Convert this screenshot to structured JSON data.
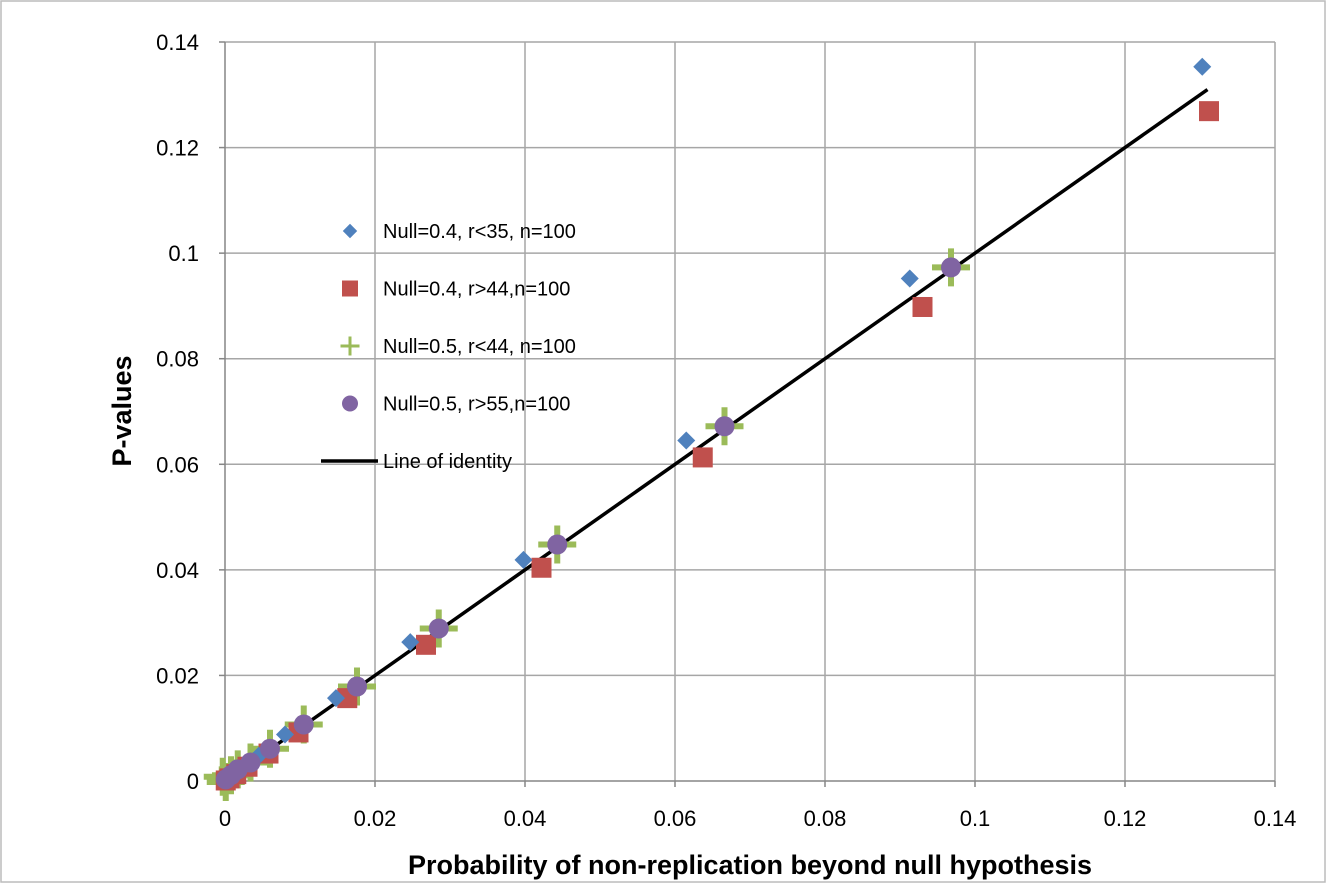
{
  "chart_data": {
    "type": "scatter",
    "xlabel": "Probability of non-replication beyond null hypothesis",
    "ylabel": "P-values",
    "xlim": [
      0,
      0.14
    ],
    "ylim": [
      0,
      0.14
    ],
    "x_ticks": [
      "0",
      "0.02",
      "0.04",
      "0.06",
      "0.08",
      "0.1",
      "0.12",
      "0.14"
    ],
    "y_ticks": [
      "0",
      "0.02",
      "0.04",
      "0.06",
      "0.08",
      "0.1",
      "0.12",
      "0.14"
    ],
    "grid": true,
    "legend_position": "left, inside plot area",
    "series": [
      {
        "name": "Null=0.4, r<35, n=100",
        "marker": "diamond",
        "color": "#4f81bd",
        "points": [
          [
            0.0001,
            0.0001
          ],
          [
            0.0005,
            0.0006
          ],
          [
            0.0012,
            0.0013
          ],
          [
            0.0025,
            0.0027
          ],
          [
            0.0045,
            0.0048
          ],
          [
            0.008,
            0.0088
          ],
          [
            0.0148,
            0.0157
          ],
          [
            0.0247,
            0.0263
          ],
          [
            0.0398,
            0.0419
          ],
          [
            0.0615,
            0.0645
          ],
          [
            0.0913,
            0.0952
          ],
          [
            0.1303,
            0.1353
          ]
        ]
      },
      {
        "name": "Null=0.4, r>44,n=100",
        "marker": "square",
        "color": "#c0504d",
        "points": [
          [
            0.0001,
            0.0001
          ],
          [
            0.0006,
            0.0005
          ],
          [
            0.0015,
            0.0013
          ],
          [
            0.003,
            0.0027
          ],
          [
            0.0058,
            0.0052
          ],
          [
            0.0098,
            0.0092
          ],
          [
            0.0163,
            0.0157
          ],
          [
            0.0268,
            0.0258
          ],
          [
            0.0422,
            0.0404
          ],
          [
            0.0637,
            0.0613
          ],
          [
            0.093,
            0.0898
          ],
          [
            0.1312,
            0.1269
          ]
        ]
      },
      {
        "name": "Null=0.5, r<44, n=100",
        "marker": "plus",
        "color": "#9bbb59",
        "points": [
          [
            -0.0003,
            0.0008
          ],
          [
            0.0001,
            -0.0002
          ],
          [
            0.0008,
            0.0011
          ],
          [
            0.0017,
            0.0022
          ],
          [
            0.0034,
            0.0035
          ],
          [
            0.006,
            0.0061
          ],
          [
            0.0105,
            0.0107
          ],
          [
            0.0176,
            0.0179
          ],
          [
            0.0285,
            0.0289
          ],
          [
            0.0443,
            0.0448
          ],
          [
            0.0666,
            0.0672
          ],
          [
            0.0968,
            0.0973
          ]
        ]
      },
      {
        "name": "Null=0.5, r>55,n=100",
        "marker": "circle",
        "color": "#8064a2",
        "points": [
          [
            0.0001,
            0.0003
          ],
          [
            0.0008,
            0.0011
          ],
          [
            0.0017,
            0.0022
          ],
          [
            0.0034,
            0.0035
          ],
          [
            0.006,
            0.0061
          ],
          [
            0.0105,
            0.0107
          ],
          [
            0.0176,
            0.0179
          ],
          [
            0.0285,
            0.0289
          ],
          [
            0.0443,
            0.0448
          ],
          [
            0.0666,
            0.0672
          ],
          [
            0.0968,
            0.0973
          ]
        ]
      },
      {
        "name": "Line of identity",
        "marker": "line",
        "color": "#000000",
        "points": [
          [
            0,
            0
          ],
          [
            0.131,
            0.131
          ]
        ]
      }
    ]
  }
}
